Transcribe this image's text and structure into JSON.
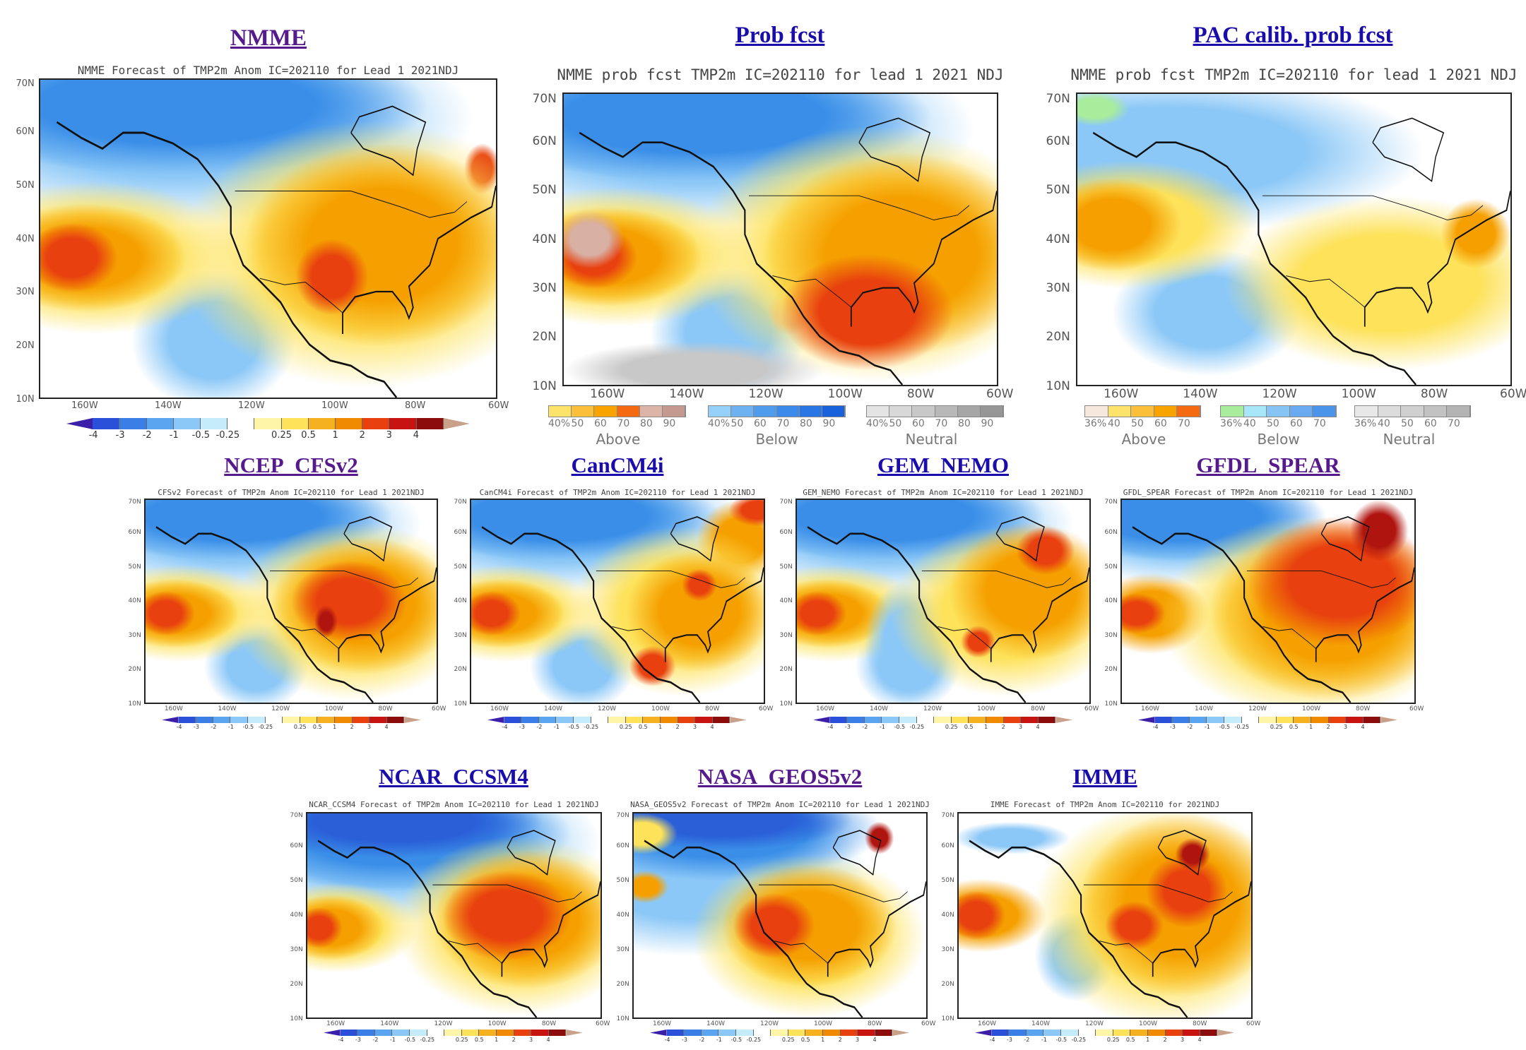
{
  "colors": {
    "link": "#1a0dab",
    "visited": "#551a8b"
  },
  "lat_labels": [
    "70N",
    "60N",
    "50N",
    "40N",
    "30N",
    "20N",
    "10N"
  ],
  "lon_labels": [
    "160W",
    "140W",
    "120W",
    "100W",
    "80W",
    "60W"
  ],
  "anom_colorbar": {
    "labels": [
      "-4",
      "-3",
      "-2",
      "-1",
      "-0.5",
      "-0.25",
      "0.25",
      "0.5",
      "1",
      "2",
      "3",
      "4"
    ],
    "colors": [
      "#3c1fa8",
      "#2a4fd8",
      "#3a7ee6",
      "#5aa4f0",
      "#8cc8f7",
      "#c4ecfb",
      "#ffffff",
      "#fff5a8",
      "#fde25a",
      "#f5b120",
      "#f08a00",
      "#e8400f",
      "#c81410",
      "#8c0c0c",
      "#c9a08a"
    ]
  },
  "panels": [
    {
      "id": "nmme",
      "link": "NMME",
      "visited": true,
      "subtitle": "NMME Forecast of TMP2m Anom IC=202110 for Lead 1 2021NDJ"
    },
    {
      "id": "prob",
      "link": "Prob fcst",
      "visited": false,
      "subtitle": "NMME prob fcst TMP2m IC=202110 for lead 1 2021 NDJ"
    },
    {
      "id": "pac",
      "link": "PAC calib. prob fcst",
      "visited": false,
      "subtitle": "NMME prob fcst TMP2m IC=202110 for lead 1 2021 NDJ"
    },
    {
      "id": "cfs",
      "link": "NCEP_CFSv2",
      "visited": true,
      "subtitle": "CFSv2 Forecast of TMP2m Anom IC=202110 for Lead 1 2021NDJ"
    },
    {
      "id": "can",
      "link": "CanCM4i",
      "visited": false,
      "subtitle": "CanCM4i Forecast of TMP2m Anom IC=202110 for Lead 1 2021NDJ"
    },
    {
      "id": "gem",
      "link": "GEM_NEMO",
      "visited": false,
      "subtitle": "GEM_NEMO Forecast of TMP2m Anom IC=202110 for Lead 1 2021NDJ"
    },
    {
      "id": "gfdl",
      "link": "GFDL_SPEAR",
      "visited": true,
      "subtitle": "GFDL_SPEAR Forecast of TMP2m Anom IC=202110 for Lead 1 2021NDJ"
    },
    {
      "id": "ncar",
      "link": "NCAR_CCSM4",
      "visited": false,
      "subtitle": "NCAR_CCSM4 Forecast of TMP2m Anom IC=202110 for Lead 1 2021NDJ"
    },
    {
      "id": "nasa",
      "link": "NASA_GEOS5v2",
      "visited": true,
      "subtitle": "NASA_GEOS5v2 Forecast of TMP2m Anom IC=202110 for Lead 1 2021NDJ"
    },
    {
      "id": "imme",
      "link": "IMME",
      "visited": false,
      "subtitle": "IMME Forecast of TMP2m Anom IC=202110 for 2021NDJ"
    }
  ],
  "prob_legend": {
    "groups": [
      {
        "name": "Above",
        "labels": [
          "40%",
          "50",
          "60",
          "70",
          "80",
          "90"
        ],
        "colors": [
          "#fde36a",
          "#fbbf3a",
          "#f9a300",
          "#f46a10",
          "#dcb4a8",
          "#c49a90"
        ]
      },
      {
        "name": "Below",
        "labels": [
          "40%",
          "50",
          "60",
          "70",
          "80",
          "90"
        ],
        "colors": [
          "#94d0f8",
          "#6fb2f2",
          "#4f9ced",
          "#3c8aea",
          "#2a76e4",
          "#1a62dc"
        ]
      },
      {
        "name": "Neutral",
        "labels": [
          "40%",
          "50",
          "60",
          "70",
          "80",
          "90"
        ],
        "colors": [
          "#e4e4e4",
          "#d8d8d8",
          "#c8c8c8",
          "#b8b8b8",
          "#a6a6a6",
          "#969696"
        ]
      }
    ]
  },
  "pac_legend": {
    "groups": [
      {
        "name": "Above",
        "labels": [
          "36%",
          "40",
          "50",
          "60",
          "70"
        ],
        "colors": [
          "#f6e8dc",
          "#fde36a",
          "#fbbf3a",
          "#f9a300",
          "#f46a10"
        ]
      },
      {
        "name": "Below",
        "labels": [
          "36%",
          "40",
          "50",
          "60",
          "70"
        ],
        "colors": [
          "#a8ec9c",
          "#a6e6f8",
          "#86c4f4",
          "#6aaaf0",
          "#4a94ea"
        ]
      },
      {
        "name": "Neutral",
        "labels": [
          "36%",
          "40",
          "50",
          "60",
          "70"
        ],
        "colors": [
          "#e8e8e8",
          "#dcdcdc",
          "#d0d0d0",
          "#c2c2c2",
          "#b4b4b4"
        ]
      }
    ]
  }
}
